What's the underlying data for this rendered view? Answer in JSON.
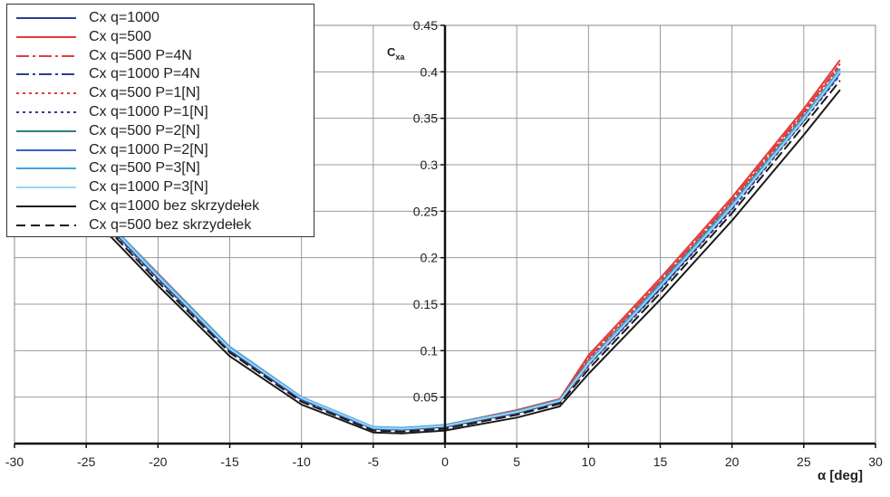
{
  "chart_data": {
    "type": "line",
    "xlabel": "α [deg]",
    "ylabel": "Cxa",
    "ylabel_main": "C",
    "ylabel_sub": "xa",
    "xlim": [
      -30,
      30
    ],
    "ylim": [
      0,
      0.45
    ],
    "xticks": [
      "-30",
      "-25",
      "-20",
      "-15",
      "-10",
      "-5",
      "0",
      "5",
      "10",
      "15",
      "20",
      "25",
      "30"
    ],
    "yticks": [
      "0.05",
      "0.1",
      "0.15",
      "0.2",
      "0.25",
      "0.3",
      "0.35",
      "0.4",
      "0.45"
    ],
    "grid": true,
    "legend_position": "top-left",
    "series": [
      {
        "name": "Cx q=1000",
        "color": "#2b3f8f",
        "dash": "",
        "x": [
          -25,
          -20,
          -15,
          -10,
          -5,
          -3,
          0,
          5,
          8,
          10,
          15,
          20,
          25,
          27.5
        ],
        "y": [
          0.26,
          0.178,
          0.101,
          0.048,
          0.016,
          0.015,
          0.018,
          0.033,
          0.045,
          0.085,
          0.168,
          0.255,
          0.35,
          0.4
        ]
      },
      {
        "name": "Cx q=500",
        "color": "#e03c3c",
        "dash": "",
        "x": [
          -25,
          -20,
          -15,
          -10,
          -5,
          -3,
          0,
          5,
          8,
          10,
          15,
          20,
          25,
          27.5
        ],
        "y": [
          0.262,
          0.183,
          0.104,
          0.05,
          0.017,
          0.016,
          0.02,
          0.036,
          0.048,
          0.095,
          0.178,
          0.265,
          0.36,
          0.412
        ]
      },
      {
        "name": "Cx q=500 P=4N",
        "color": "#e03c3c",
        "dash": "14,4,3,4",
        "x": [
          -25,
          -20,
          -15,
          -10,
          -5,
          -3,
          0,
          5,
          8,
          10,
          15,
          20,
          25,
          27.5
        ],
        "y": [
          0.261,
          0.182,
          0.103,
          0.049,
          0.017,
          0.016,
          0.02,
          0.035,
          0.047,
          0.092,
          0.175,
          0.262,
          0.357,
          0.408
        ]
      },
      {
        "name": "Cx q=1000 P=4N",
        "color": "#2b3f8f",
        "dash": "14,4,3,4",
        "x": [
          -25,
          -20,
          -15,
          -10,
          -5,
          -3,
          0,
          5,
          8,
          10,
          15,
          20,
          25,
          27.5
        ],
        "y": [
          0.259,
          0.178,
          0.1,
          0.047,
          0.016,
          0.015,
          0.018,
          0.033,
          0.045,
          0.085,
          0.167,
          0.254,
          0.348,
          0.398
        ]
      },
      {
        "name": "Cx q=500 P=1[N]",
        "color": "#e03c3c",
        "dash": "3,4",
        "x": [
          -25,
          -20,
          -15,
          -10,
          -5,
          -3,
          0,
          5,
          8,
          10,
          15,
          20,
          25,
          27.5
        ],
        "y": [
          0.26,
          0.181,
          0.103,
          0.049,
          0.017,
          0.016,
          0.019,
          0.035,
          0.047,
          0.09,
          0.173,
          0.26,
          0.355,
          0.406
        ]
      },
      {
        "name": "Cx q=1000 P=1[N]",
        "color": "#2b3f8f",
        "dash": "3,4",
        "x": [
          -25,
          -20,
          -15,
          -10,
          -5,
          -3,
          0,
          5,
          8,
          10,
          15,
          20,
          25,
          27.5
        ],
        "y": [
          0.258,
          0.177,
          0.1,
          0.047,
          0.016,
          0.015,
          0.018,
          0.033,
          0.045,
          0.084,
          0.166,
          0.252,
          0.347,
          0.396
        ]
      },
      {
        "name": "Cx q=500 P=2[N]",
        "color": "#2a7f86",
        "dash": "",
        "x": [
          -25,
          -20,
          -15,
          -10,
          -5,
          -3,
          0,
          5,
          8,
          10,
          15,
          20,
          25,
          27.5
        ],
        "y": [
          0.262,
          0.181,
          0.103,
          0.049,
          0.017,
          0.016,
          0.02,
          0.035,
          0.047,
          0.088,
          0.172,
          0.258,
          0.352,
          0.402
        ]
      },
      {
        "name": "Cx q=1000 P=2[N]",
        "color": "#3a62c4",
        "dash": "",
        "x": [
          -25,
          -20,
          -15,
          -10,
          -5,
          -3,
          0,
          5,
          8,
          10,
          15,
          20,
          25,
          27.5
        ],
        "y": [
          0.26,
          0.179,
          0.102,
          0.048,
          0.016,
          0.015,
          0.019,
          0.034,
          0.046,
          0.086,
          0.17,
          0.256,
          0.35,
          0.398
        ]
      },
      {
        "name": "Cx q=500 P=3[N]",
        "color": "#3aa6dc",
        "dash": "",
        "x": [
          -25,
          -20,
          -15,
          -10,
          -5,
          -3,
          0,
          5,
          8,
          10,
          15,
          20,
          25,
          27.5
        ],
        "y": [
          0.263,
          0.182,
          0.104,
          0.05,
          0.018,
          0.017,
          0.02,
          0.035,
          0.047,
          0.088,
          0.171,
          0.257,
          0.351,
          0.403
        ]
      },
      {
        "name": "Cx q=1000 P=3[N]",
        "color": "#9ad4f0",
        "dash": "",
        "x": [
          -25,
          -20,
          -15,
          -10,
          -5,
          -3,
          0,
          5,
          8,
          10,
          15,
          20,
          25,
          27.5
        ],
        "y": [
          0.261,
          0.18,
          0.102,
          0.049,
          0.017,
          0.016,
          0.019,
          0.034,
          0.046,
          0.086,
          0.169,
          0.255,
          0.349,
          0.4
        ]
      },
      {
        "name": "Cx q=1000 bez skrzydełek",
        "color": "#1a1a1a",
        "dash": "",
        "x": [
          -25,
          -20,
          -15,
          -10,
          -5,
          -3,
          0,
          5,
          8,
          10,
          15,
          20,
          25,
          27.5
        ],
        "y": [
          0.25,
          0.17,
          0.094,
          0.042,
          0.012,
          0.011,
          0.014,
          0.028,
          0.04,
          0.075,
          0.155,
          0.24,
          0.332,
          0.38
        ]
      },
      {
        "name": "Cx q=500 bez skrzydełek",
        "color": "#1a1a1a",
        "dash": "10,6",
        "x": [
          -25,
          -20,
          -15,
          -10,
          -5,
          -3,
          0,
          5,
          8,
          10,
          15,
          20,
          25,
          27.5
        ],
        "y": [
          0.255,
          0.174,
          0.098,
          0.045,
          0.014,
          0.013,
          0.016,
          0.031,
          0.043,
          0.08,
          0.162,
          0.248,
          0.342,
          0.39
        ]
      }
    ]
  }
}
